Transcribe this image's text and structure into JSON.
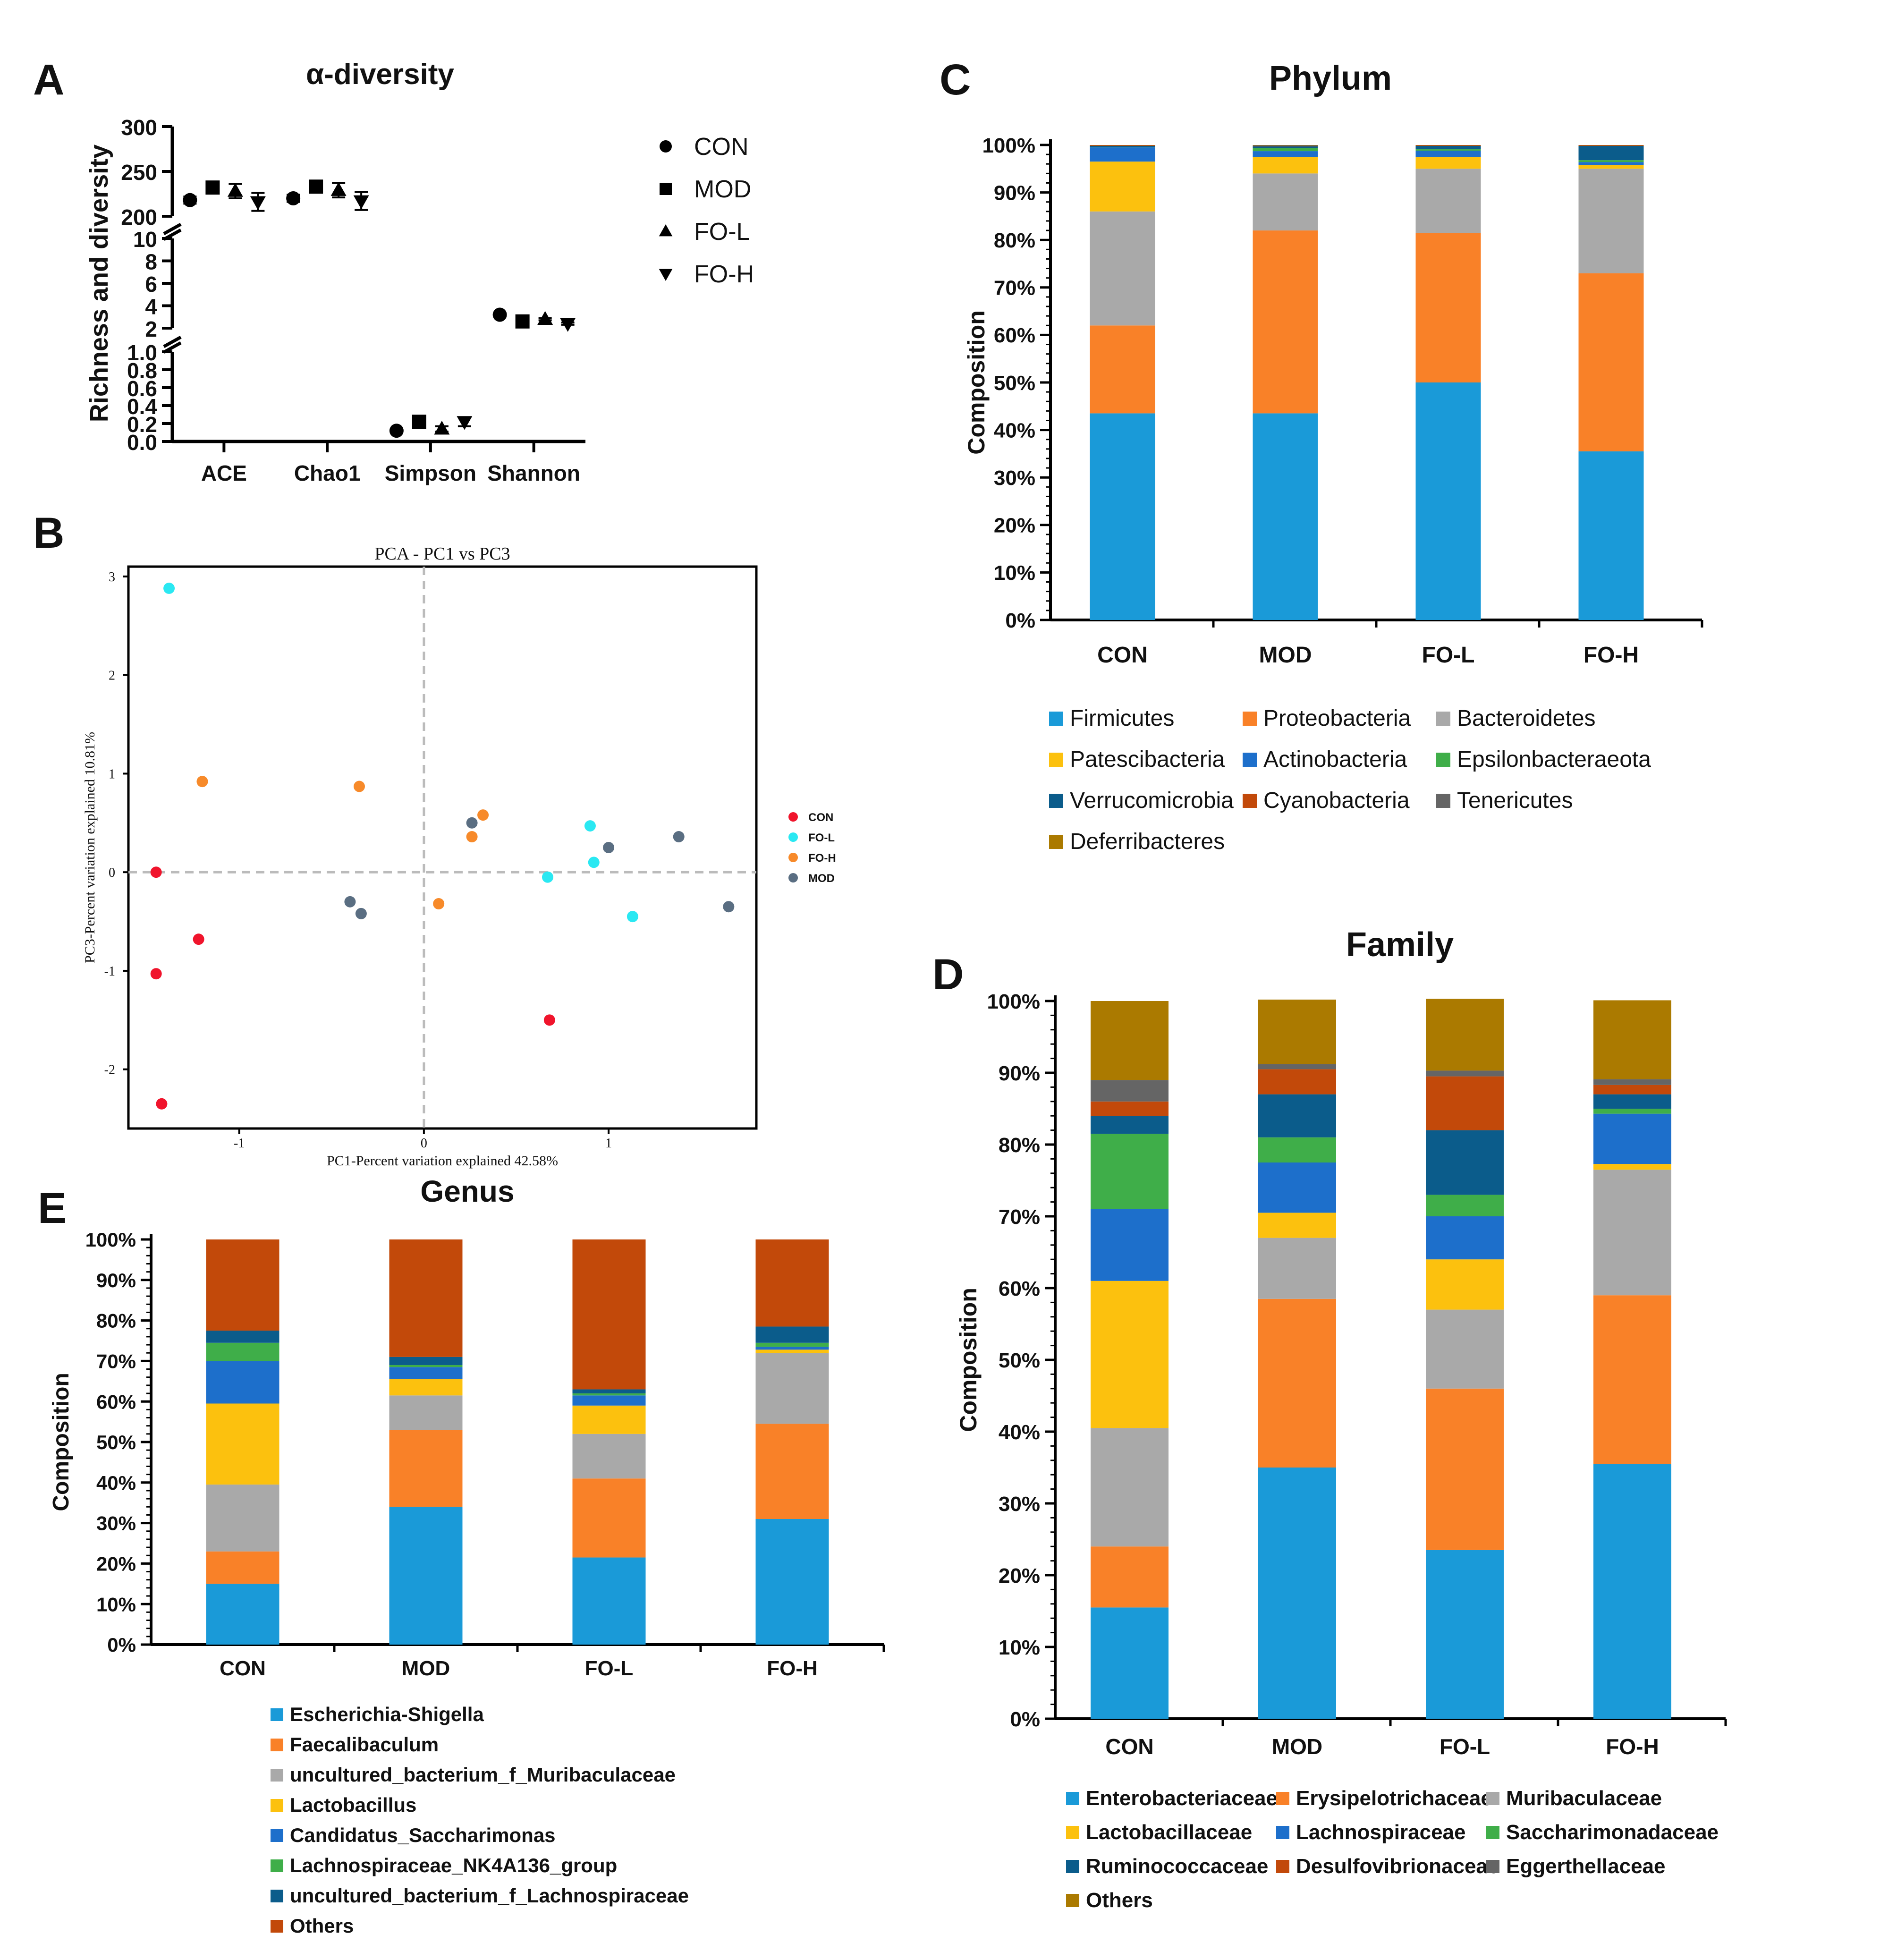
{
  "panel_labels": {
    "a": "A",
    "b": "B",
    "c": "C",
    "d": "D",
    "e": "E"
  },
  "chart_data": [
    {
      "panel": "A",
      "type": "scatter",
      "title": "α-diversity",
      "ylabel": "Richness and diversity",
      "categories": [
        "ACE",
        "Chao1",
        "Simpson",
        "Shannon"
      ],
      "y_segments": [
        {
          "range": [
            0,
            1.0
          ],
          "ticks": [
            "0.0",
            "0.2",
            "0.4",
            "0.6",
            "0.8",
            "1.0"
          ]
        },
        {
          "range": [
            2,
            10
          ],
          "ticks": [
            "2",
            "4",
            "6",
            "8",
            "10"
          ]
        },
        {
          "range": [
            200,
            300
          ],
          "ticks": [
            "200",
            "250",
            "300"
          ]
        }
      ],
      "series": [
        {
          "name": "CON",
          "marker": "circle",
          "values": [
            218,
            220,
            0.12,
            3.2
          ],
          "errors": [
            4,
            4,
            0.02,
            0.1
          ]
        },
        {
          "name": "MOD",
          "marker": "square",
          "values": [
            232,
            233,
            0.22,
            2.6
          ],
          "errors": [
            4,
            4,
            0.03,
            0.1
          ]
        },
        {
          "name": "FO-L",
          "marker": "triangle-up",
          "values": [
            228,
            229,
            0.14,
            2.8
          ],
          "errors": [
            8,
            8,
            0.03,
            0.1
          ]
        },
        {
          "name": "FO-H",
          "marker": "triangle-down",
          "values": [
            216,
            217,
            0.22,
            2.4
          ],
          "errors": [
            10,
            10,
            0.05,
            0.1
          ]
        }
      ]
    },
    {
      "panel": "B",
      "type": "scatter",
      "title": "PCA - PC1 vs PC3",
      "xlabel": "PC1-Percent variation explained 42.58%",
      "ylabel": "PC3-Percent variation explained 10.81%",
      "xlim": [
        -1.6,
        1.8
      ],
      "ylim": [
        -2.6,
        3.1
      ],
      "xticks": [
        "-1",
        "0",
        "1"
      ],
      "xtick_values": [
        -1,
        0,
        1
      ],
      "yticks": [
        "-2",
        "-1",
        "0",
        "1",
        "2",
        "3"
      ],
      "ytick_values": [
        -2,
        -1,
        0,
        1,
        2,
        3
      ],
      "series": [
        {
          "name": "CON",
          "color": "#f0142c",
          "points": [
            [
              -1.45,
              0.0
            ],
            [
              -1.22,
              -0.68
            ],
            [
              -1.45,
              -1.03
            ],
            [
              -1.42,
              -2.35
            ],
            [
              0.68,
              -1.5
            ]
          ]
        },
        {
          "name": "FO-L",
          "color": "#2ae8f2",
          "points": [
            [
              -1.38,
              2.88
            ],
            [
              0.67,
              -0.05
            ],
            [
              0.9,
              0.47
            ],
            [
              0.92,
              0.1
            ],
            [
              1.13,
              -0.45
            ]
          ]
        },
        {
          "name": "FO-H",
          "color": "#f78a2a",
          "points": [
            [
              -1.2,
              0.92
            ],
            [
              -0.35,
              0.87
            ],
            [
              0.26,
              0.36
            ],
            [
              0.32,
              0.58
            ],
            [
              0.08,
              -0.32
            ]
          ]
        },
        {
          "name": "MOD",
          "color": "#5a6e82",
          "points": [
            [
              -0.4,
              -0.3
            ],
            [
              -0.34,
              -0.42
            ],
            [
              0.26,
              0.5
            ],
            [
              1.0,
              0.25
            ],
            [
              1.38,
              0.36
            ],
            [
              1.65,
              -0.35
            ]
          ]
        }
      ]
    },
    {
      "panel": "C",
      "type": "bar",
      "stacked": true,
      "title": "Phylum",
      "ylabel": "Composition",
      "ylim": [
        0,
        100
      ],
      "yticks": [
        "0%",
        "10%",
        "20%",
        "30%",
        "40%",
        "50%",
        "60%",
        "70%",
        "80%",
        "90%",
        "100%"
      ],
      "categories": [
        "CON",
        "MOD",
        "FO-L",
        "FO-H"
      ],
      "series": [
        {
          "name": "Firmicutes",
          "color": "#1a9ad8",
          "values": [
            43.5,
            43.5,
            50,
            35.5
          ]
        },
        {
          "name": "Proteobacteria",
          "color": "#f98128",
          "values": [
            18.5,
            38.5,
            31.5,
            37.5
          ]
        },
        {
          "name": "Bacteroidetes",
          "color": "#a9a9a9",
          "values": [
            24,
            12,
            13.5,
            22
          ]
        },
        {
          "name": "Patescibacteria",
          "color": "#fcc10e",
          "values": [
            10.5,
            3.5,
            2.5,
            0.8
          ]
        },
        {
          "name": "Actinobacteria",
          "color": "#1d6fcb",
          "values": [
            3,
            1.2,
            1.3,
            0.6
          ]
        },
        {
          "name": "Epsilonbacteraeota",
          "color": "#3fae49",
          "values": [
            0.1,
            0.7,
            0.3,
            0.4
          ]
        },
        {
          "name": "Verrucomicrobia",
          "color": "#0b5c8b",
          "values": [
            0.2,
            0.3,
            0.7,
            3
          ]
        },
        {
          "name": "Cyanobacteria",
          "color": "#c2490a",
          "values": [
            0.1,
            0.1,
            0.1,
            0.1
          ]
        },
        {
          "name": "Tenericutes",
          "color": "#656565",
          "values": [
            0.05,
            0.1,
            0.05,
            0.05
          ]
        },
        {
          "name": "Deferribacteres",
          "color": "#ab7a00",
          "values": [
            0.05,
            0.1,
            0.05,
            0.05
          ]
        }
      ]
    },
    {
      "panel": "D",
      "type": "bar",
      "stacked": true,
      "title": "Family",
      "ylabel": "Composition",
      "ylim": [
        0,
        100
      ],
      "yticks": [
        "0%",
        "10%",
        "20%",
        "30%",
        "40%",
        "50%",
        "60%",
        "70%",
        "80%",
        "90%",
        "100%"
      ],
      "categories": [
        "CON",
        "MOD",
        "FO-L",
        "FO-H"
      ],
      "series": [
        {
          "name": "Enterobacteriaceae",
          "color": "#1a9ad8",
          "values": [
            15.5,
            35,
            23.5,
            35.5
          ]
        },
        {
          "name": "Erysipelotrichaceae",
          "color": "#f98128",
          "values": [
            8.5,
            23.5,
            22.5,
            23.5
          ]
        },
        {
          "name": "Muribaculaceae",
          "color": "#a9a9a9",
          "values": [
            16.5,
            8.5,
            11,
            17.5
          ]
        },
        {
          "name": "Lactobacillaceae",
          "color": "#fcc10e",
          "values": [
            20.5,
            3.5,
            7,
            0.8
          ]
        },
        {
          "name": "Lachnospiraceae",
          "color": "#1d6fcb",
          "values": [
            10,
            7,
            6,
            7
          ]
        },
        {
          "name": "Saccharimonadaceae",
          "color": "#3fae49",
          "values": [
            10.5,
            3.5,
            3,
            0.7
          ]
        },
        {
          "name": "Ruminococcaceae",
          "color": "#0b5c8b",
          "values": [
            2.5,
            6,
            9,
            2
          ]
        },
        {
          "name": "Desulfovibrionaceae",
          "color": "#c2490a",
          "values": [
            2,
            3.5,
            7.5,
            1.3
          ]
        },
        {
          "name": "Eggerthellaceae",
          "color": "#656565",
          "values": [
            3,
            0.7,
            0.8,
            0.8
          ]
        },
        {
          "name": "Others",
          "color": "#ab7a00",
          "values": [
            11,
            9,
            10,
            11
          ]
        }
      ]
    },
    {
      "panel": "E",
      "type": "bar",
      "stacked": true,
      "title": "Genus",
      "ylabel": "Composition",
      "ylim": [
        0,
        100
      ],
      "yticks": [
        "0%",
        "10%",
        "20%",
        "30%",
        "40%",
        "50%",
        "60%",
        "70%",
        "80%",
        "90%",
        "100%"
      ],
      "categories": [
        "CON",
        "MOD",
        "FO-L",
        "FO-H"
      ],
      "series": [
        {
          "name": "Escherichia-Shigella",
          "color": "#1a9ad8",
          "values": [
            15,
            34,
            21.5,
            31
          ]
        },
        {
          "name": "Faecalibaculum",
          "color": "#f98128",
          "values": [
            8,
            19,
            19.5,
            23.5
          ]
        },
        {
          "name": "uncultured_bacterium_f_Muribaculaceae",
          "color": "#a9a9a9",
          "values": [
            16.5,
            8.5,
            11,
            17.5
          ]
        },
        {
          "name": "Lactobacillus",
          "color": "#fcc10e",
          "values": [
            20,
            4,
            7,
            0.8
          ]
        },
        {
          "name": "Candidatus_Saccharimonas",
          "color": "#1d6fcb",
          "values": [
            10.5,
            3,
            2.5,
            0.7
          ]
        },
        {
          "name": "Lachnospiraceae_NK4A136_group",
          "color": "#3fae49",
          "values": [
            4.5,
            0.5,
            0.5,
            1
          ]
        },
        {
          "name": "uncultured_bacterium_f_Lachnospiraceae",
          "color": "#0b5c8b",
          "values": [
            3,
            2,
            1,
            4
          ]
        },
        {
          "name": "Others",
          "color": "#c2490a",
          "values": [
            22.5,
            29,
            37,
            21.5
          ]
        }
      ]
    }
  ]
}
